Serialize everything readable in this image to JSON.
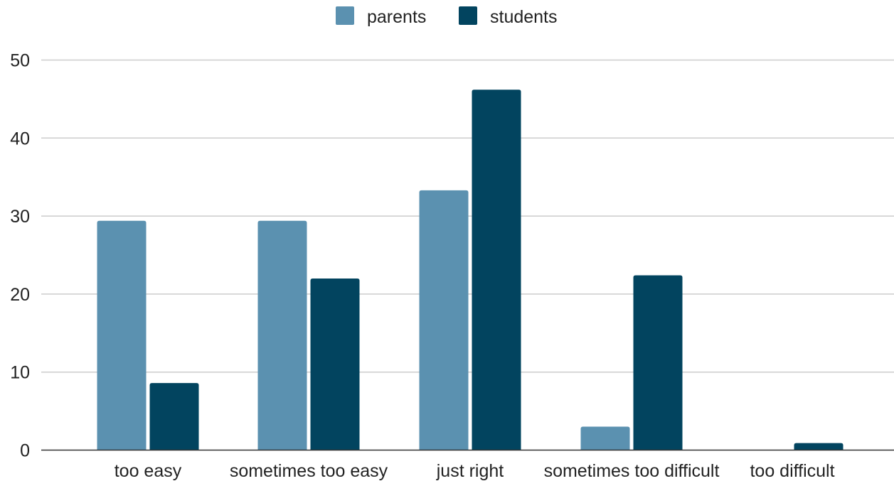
{
  "chart_data": {
    "type": "bar",
    "categories": [
      "too easy",
      "sometimes too easy",
      "just right",
      "sometimes too difficult",
      "too difficult"
    ],
    "series": [
      {
        "name": "parents",
        "color": "#5b91b0",
        "values": [
          29.4,
          29.4,
          33.3,
          3.0,
          0
        ]
      },
      {
        "name": "students",
        "color": "#02445f",
        "values": [
          8.6,
          22.0,
          46.2,
          22.4,
          0.9
        ]
      }
    ],
    "yticks": [
      "0",
      "10",
      "20",
      "30",
      "40",
      "50"
    ],
    "ylim": [
      0,
      50
    ],
    "grid": true,
    "legend_position": "top-center",
    "title": "",
    "xlabel": "",
    "ylabel": ""
  }
}
